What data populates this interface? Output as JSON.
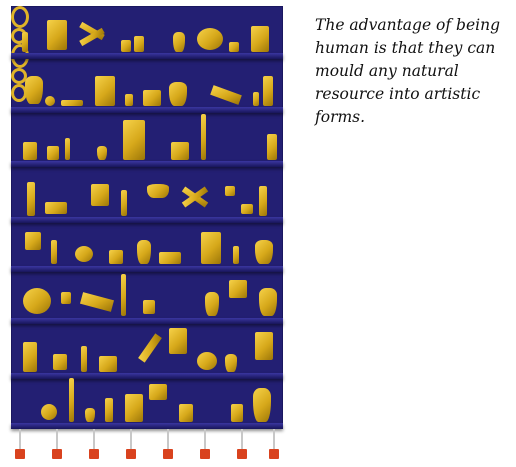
{
  "caption": {
    "text": "The advantage of being human is that they can mould any natural resource into artistic forms."
  },
  "artwork": {
    "panel_color": "#231f73",
    "object_color": "#e0b428",
    "hook_color": "#d9421e",
    "shelf_count": 8,
    "hook_count": 8
  }
}
